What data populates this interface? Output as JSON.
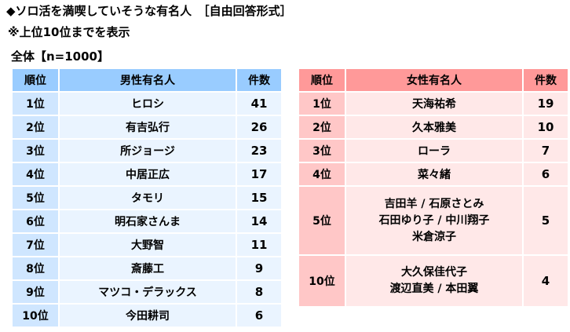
{
  "title": "◆ソロ活を満喫していそうな有名人　［自由回答形式］",
  "note": "※上位10位までを表示",
  "scope": "全体【n=1000】",
  "male": {
    "headers": {
      "rank": "順位",
      "name": "男性有名人",
      "count": "件数"
    },
    "rows": [
      {
        "rank": "1位",
        "name": "ヒロシ",
        "count": "41"
      },
      {
        "rank": "2位",
        "name": "有吉弘行",
        "count": "26"
      },
      {
        "rank": "3位",
        "name": "所ジョージ",
        "count": "23"
      },
      {
        "rank": "4位",
        "name": "中居正広",
        "count": "17"
      },
      {
        "rank": "5位",
        "name": "タモリ",
        "count": "15"
      },
      {
        "rank": "6位",
        "name": "明石家さんま",
        "count": "14"
      },
      {
        "rank": "7位",
        "name": "大野智",
        "count": "11"
      },
      {
        "rank": "8位",
        "name": "斎藤工",
        "count": "9"
      },
      {
        "rank": "9位",
        "name": "マツコ・デラックス",
        "count": "8"
      },
      {
        "rank": "10位",
        "name": "今田耕司",
        "count": "6"
      }
    ]
  },
  "female": {
    "headers": {
      "rank": "順位",
      "name": "女性有名人",
      "count": "件数"
    },
    "rows": [
      {
        "rank": "1位",
        "name": "天海祐希",
        "count": "19"
      },
      {
        "rank": "2位",
        "name": "久本雅美",
        "count": "10"
      },
      {
        "rank": "3位",
        "name": "ローラ",
        "count": "7"
      },
      {
        "rank": "4位",
        "name": "菜々緒",
        "count": "6"
      },
      {
        "rank": "5位",
        "lines": [
          "吉田羊 / 石原さとみ",
          "石田ゆり子 / 中川翔子",
          "米倉涼子"
        ],
        "count": "5"
      },
      {
        "rank": "10位",
        "lines": [
          "大久保佳代子",
          "渡辺直美 / 本田翼"
        ],
        "count": "4"
      }
    ]
  },
  "colors": {
    "male_header": "#99ccff",
    "male_rank": "#cfe6ff",
    "male_cell": "#eaf4ff",
    "female_header": "#ff9999",
    "female_rank": "#ffc7c7",
    "female_cell": "#ffe8e8"
  }
}
